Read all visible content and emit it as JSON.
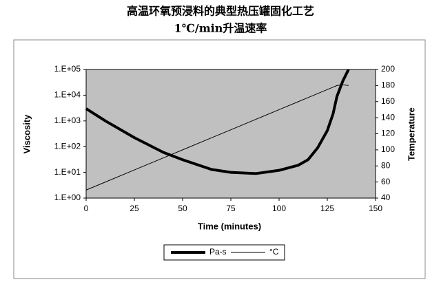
{
  "chart_data": {
    "type": "line",
    "title": "高温环氧预浸料的典型热压罐固化工艺",
    "subtitle": "1℃/min升温速率",
    "x_label": "Time (minutes)",
    "y_label": "Viscosity",
    "y2_label": "Temperature",
    "x": [
      0,
      10,
      25,
      40,
      50,
      65,
      75,
      88,
      100,
      110,
      115,
      120,
      125,
      128,
      130,
      133,
      136
    ],
    "series": [
      {
        "name": "Pa-s",
        "color": "#000000",
        "width": 4,
        "values": [
          3000,
          1000,
          224,
          60,
          31,
          13,
          10,
          9,
          12,
          19,
          31,
          90,
          420,
          1900,
          9000,
          35000,
          100000
        ]
      },
      {
        "name": "°C",
        "color": "#000000",
        "width": 1,
        "axis": "y2",
        "values": [
          50,
          60,
          75,
          90,
          100,
          115,
          125,
          138,
          150,
          160,
          165,
          170,
          175,
          178,
          180,
          181,
          180
        ]
      }
    ],
    "xlim": [
      0,
      150
    ],
    "xticks": [
      0,
      25,
      50,
      75,
      100,
      125,
      150
    ],
    "ylim": [
      1,
      100000
    ],
    "y_scale": "log",
    "yticks": [
      {
        "value": 1,
        "label": "1.E+00"
      },
      {
        "value": 10,
        "label": "1.E+01"
      },
      {
        "value": 100,
        "label": "1.E+02"
      },
      {
        "value": 1000,
        "label": "1.E+03"
      },
      {
        "value": 10000,
        "label": "1.E+04"
      },
      {
        "value": 100000,
        "label": "1.E+05"
      }
    ],
    "y2lim": [
      40,
      200
    ],
    "y2ticks": [
      40,
      60,
      80,
      100,
      120,
      140,
      160,
      180,
      200
    ],
    "plot_background": "#c0c0c0",
    "legend": "bottom"
  }
}
